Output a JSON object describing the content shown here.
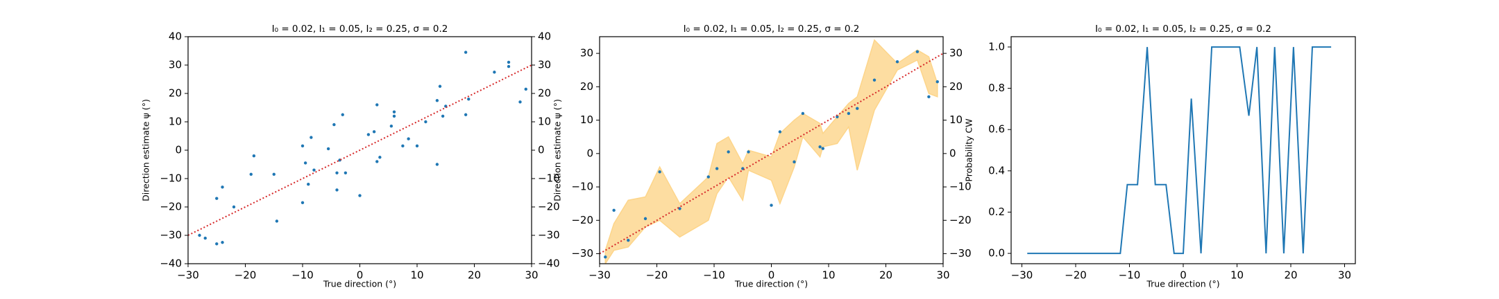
{
  "chart_data": [
    {
      "type": "scatter",
      "title": "I₀ = 0.02, I₁ = 0.05, I₂ = 0.25, σ = 0.2",
      "x_label": "True direction (°)",
      "y_label": "Direction estimate ψ (°)",
      "xlim": [
        -30,
        30
      ],
      "ylim": [
        -40,
        40
      ],
      "y2lim": [
        -40,
        40
      ],
      "xticks": [
        {
          "value": -30,
          "label": "−30"
        },
        {
          "value": -20,
          "label": "−20"
        },
        {
          "value": -10,
          "label": "−10"
        },
        0,
        10,
        20,
        30
      ],
      "yticks": [
        {
          "value": -40,
          "label": "−40"
        },
        {
          "value": -30,
          "label": "−30"
        },
        {
          "value": -20,
          "label": "−20"
        },
        {
          "value": -10,
          "label": "−10"
        },
        0,
        10,
        20,
        30,
        40
      ],
      "y2ticks": [
        {
          "value": -40,
          "label": "−40"
        },
        {
          "value": -30,
          "label": "−30"
        },
        {
          "value": -20,
          "label": "−20"
        },
        {
          "value": -10,
          "label": "−10"
        },
        0,
        10,
        20,
        30,
        40
      ],
      "series": [
        {
          "kind": "points",
          "color": "#1f77b4",
          "x": [
            -28,
            -27,
            -25,
            -25,
            -24,
            -24,
            -22,
            -19,
            -18.5,
            -15,
            -14.5,
            -10,
            -10,
            -9.5,
            -9,
            -8.5,
            -8,
            -5.5,
            -4.5,
            -4,
            -4,
            -3.5,
            -3,
            -2.5,
            0,
            1.5,
            2.5,
            3,
            3,
            3.5,
            5.5,
            6,
            6,
            7.5,
            8.5,
            10,
            11.5,
            13.5,
            13.5,
            14,
            14.5,
            15,
            18.5,
            18.5,
            19,
            23.5,
            26,
            26,
            28,
            29
          ],
          "values": [
            -30,
            -31,
            -17,
            -33,
            -32.5,
            -13,
            -20,
            -8.5,
            -2,
            -8.5,
            -25,
            -18.5,
            1.5,
            -4.5,
            -12,
            4.5,
            -7,
            0.5,
            9,
            -14,
            -8,
            -3.5,
            12.5,
            -8,
            -16,
            5.5,
            6.5,
            16,
            -4,
            -2.5,
            8.5,
            13.5,
            12,
            1.5,
            4,
            1.5,
            10,
            17.5,
            -5,
            22.5,
            12,
            15.5,
            34.5,
            12.5,
            18,
            27.5,
            31,
            29.5,
            17,
            21.5
          ]
        },
        {
          "kind": "line",
          "color": "#d62728",
          "dash": "dotted",
          "x": [
            -30,
            30
          ],
          "values": [
            -30,
            30
          ]
        }
      ]
    },
    {
      "type": "scatter",
      "title": "I₀ = 0.02, I₁ = 0.05, I₂ = 0.25, σ = 0.2",
      "x_label": "True direction (°)",
      "y_label": "Direction estimate ψ (°)",
      "xlim": [
        -30,
        30
      ],
      "ylim": [
        -33,
        35
      ],
      "y2lim": [
        -33,
        35
      ],
      "xticks": [
        {
          "value": -30,
          "label": "−30"
        },
        {
          "value": -20,
          "label": "−20"
        },
        {
          "value": -10,
          "label": "−10"
        },
        0,
        10,
        20,
        30
      ],
      "yticks": [
        {
          "value": -30,
          "label": "−30"
        },
        {
          "value": -20,
          "label": "−20"
        },
        {
          "value": -10,
          "label": "−10"
        },
        0,
        10,
        20,
        30
      ],
      "y2ticks": [
        {
          "value": -30,
          "label": "−30"
        },
        {
          "value": -20,
          "label": "−20"
        },
        {
          "value": -10,
          "label": "−10"
        },
        0,
        10,
        20,
        30
      ],
      "series": [
        {
          "kind": "band",
          "color": "#fdd58a",
          "x": [
            -29,
            -27.5,
            -25,
            -22,
            -19.5,
            -16,
            -11,
            -9.5,
            -7.5,
            -5,
            -4,
            0,
            1.5,
            4,
            5.5,
            8.5,
            9,
            11.5,
            13.5,
            15,
            18,
            22,
            25.5,
            27.5,
            29
          ],
          "lower": [
            -33,
            -29,
            -28,
            -22,
            -20,
            -25,
            -20,
            -12,
            -7,
            -14,
            -5,
            -8,
            -15,
            -4,
            5,
            -1,
            2,
            3,
            8,
            -5,
            13,
            25,
            28,
            18,
            17
          ],
          "upper": [
            -29,
            -21,
            -14,
            -13,
            -4,
            -15,
            -7,
            3,
            5,
            -3,
            1,
            -1,
            6,
            10,
            12,
            9,
            6,
            11,
            15,
            17,
            34,
            27,
            31,
            29,
            21
          ]
        },
        {
          "kind": "points",
          "color": "#1f77b4",
          "x": [
            -29,
            -27.5,
            -25,
            -22,
            -19.5,
            -16,
            -11,
            -9.5,
            -7.5,
            -5,
            -4,
            0,
            1.5,
            4,
            5.5,
            8.5,
            9,
            11.5,
            13.5,
            15,
            18,
            22,
            25.5,
            27.5,
            29
          ],
          "values": [
            -31,
            -17,
            -26,
            -19.5,
            -5.5,
            -16.5,
            -7,
            -4.5,
            0.5,
            -4.5,
            0.5,
            -15.5,
            6.5,
            -2.5,
            12,
            2,
            1.5,
            11,
            12,
            13.5,
            22,
            27.5,
            30.5,
            17,
            21.5
          ]
        },
        {
          "kind": "line",
          "color": "#d62728",
          "dash": "dotted",
          "x": [
            -30,
            30
          ],
          "values": [
            -30,
            30
          ]
        }
      ]
    },
    {
      "type": "line",
      "title": "I₀ = 0.02, I₁ = 0.05, I₂ = 0.25, σ = 0.2",
      "x_label": "True direction (°)",
      "y_label": "Probability CW",
      "xlim": [
        -32,
        32
      ],
      "ylim": [
        -0.05,
        1.05
      ],
      "xticks": [
        {
          "value": -30,
          "label": "−30"
        },
        {
          "value": -20,
          "label": "−20"
        },
        {
          "value": -10,
          "label": "−10"
        },
        0,
        10,
        20,
        30
      ],
      "yticks": [
        {
          "value": 0,
          "label": "0.0"
        },
        {
          "value": 0.2,
          "label": "0.2"
        },
        {
          "value": 0.4,
          "label": "0.4"
        },
        {
          "value": 0.6,
          "label": "0.6"
        },
        {
          "value": 0.8,
          "label": "0.8"
        },
        {
          "value": 1,
          "label": "1.0"
        }
      ],
      "series": [
        {
          "kind": "line",
          "color": "#1f77b4",
          "x": [
            -29,
            -11.7,
            -10.4,
            -8.5,
            -6.7,
            -5.2,
            -3.2,
            -1.7,
            0,
            1.5,
            3.3,
            5.3,
            10.5,
            12.2,
            13.7,
            15.4,
            17,
            18.7,
            20.5,
            22.3,
            24,
            27.5
          ],
          "values": [
            0,
            0,
            0.333,
            0.333,
            1,
            0.333,
            0.333,
            0,
            0,
            0.75,
            0,
            1,
            1,
            0.667,
            1,
            0,
            1,
            0,
            1,
            0,
            1,
            1
          ]
        }
      ]
    }
  ]
}
